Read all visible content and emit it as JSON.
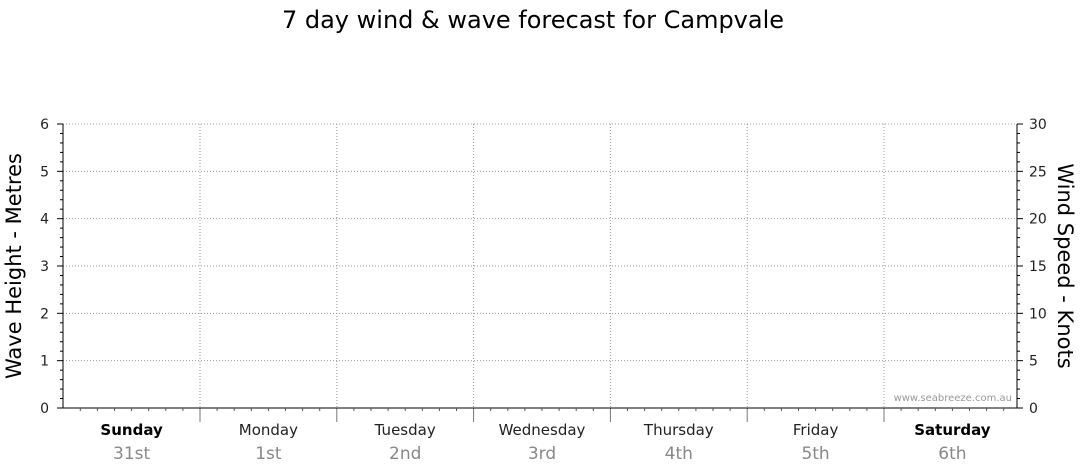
{
  "chart_data": {
    "type": "line",
    "title": "7 day wind & wave forecast for Campvale",
    "ylabel": "Wave Height - Metres",
    "y2label": "Wind Speed - Knots",
    "ylim": [
      0,
      6
    ],
    "y2lim": [
      0,
      30
    ],
    "yticks": [
      "0",
      "1",
      "2",
      "3",
      "4",
      "5",
      "6"
    ],
    "y2ticks": [
      "0",
      "5",
      "10",
      "15",
      "20",
      "25",
      "30"
    ],
    "days": [
      {
        "name": "Sunday",
        "date": "31st",
        "weekend": true
      },
      {
        "name": "Monday",
        "date": "1st",
        "weekend": false
      },
      {
        "name": "Tuesday",
        "date": "2nd",
        "weekend": false
      },
      {
        "name": "Wednesday",
        "date": "3rd",
        "weekend": false
      },
      {
        "name": "Thursday",
        "date": "4th",
        "weekend": false
      },
      {
        "name": "Friday",
        "date": "5th",
        "weekend": false
      },
      {
        "name": "Saturday",
        "date": "6th",
        "weekend": true
      }
    ],
    "series": [],
    "grid": true,
    "watermark": "www.seabreeze.com.au",
    "colors": {
      "grid": "#999999",
      "axis": "#000000",
      "date_text": "#888888"
    }
  }
}
